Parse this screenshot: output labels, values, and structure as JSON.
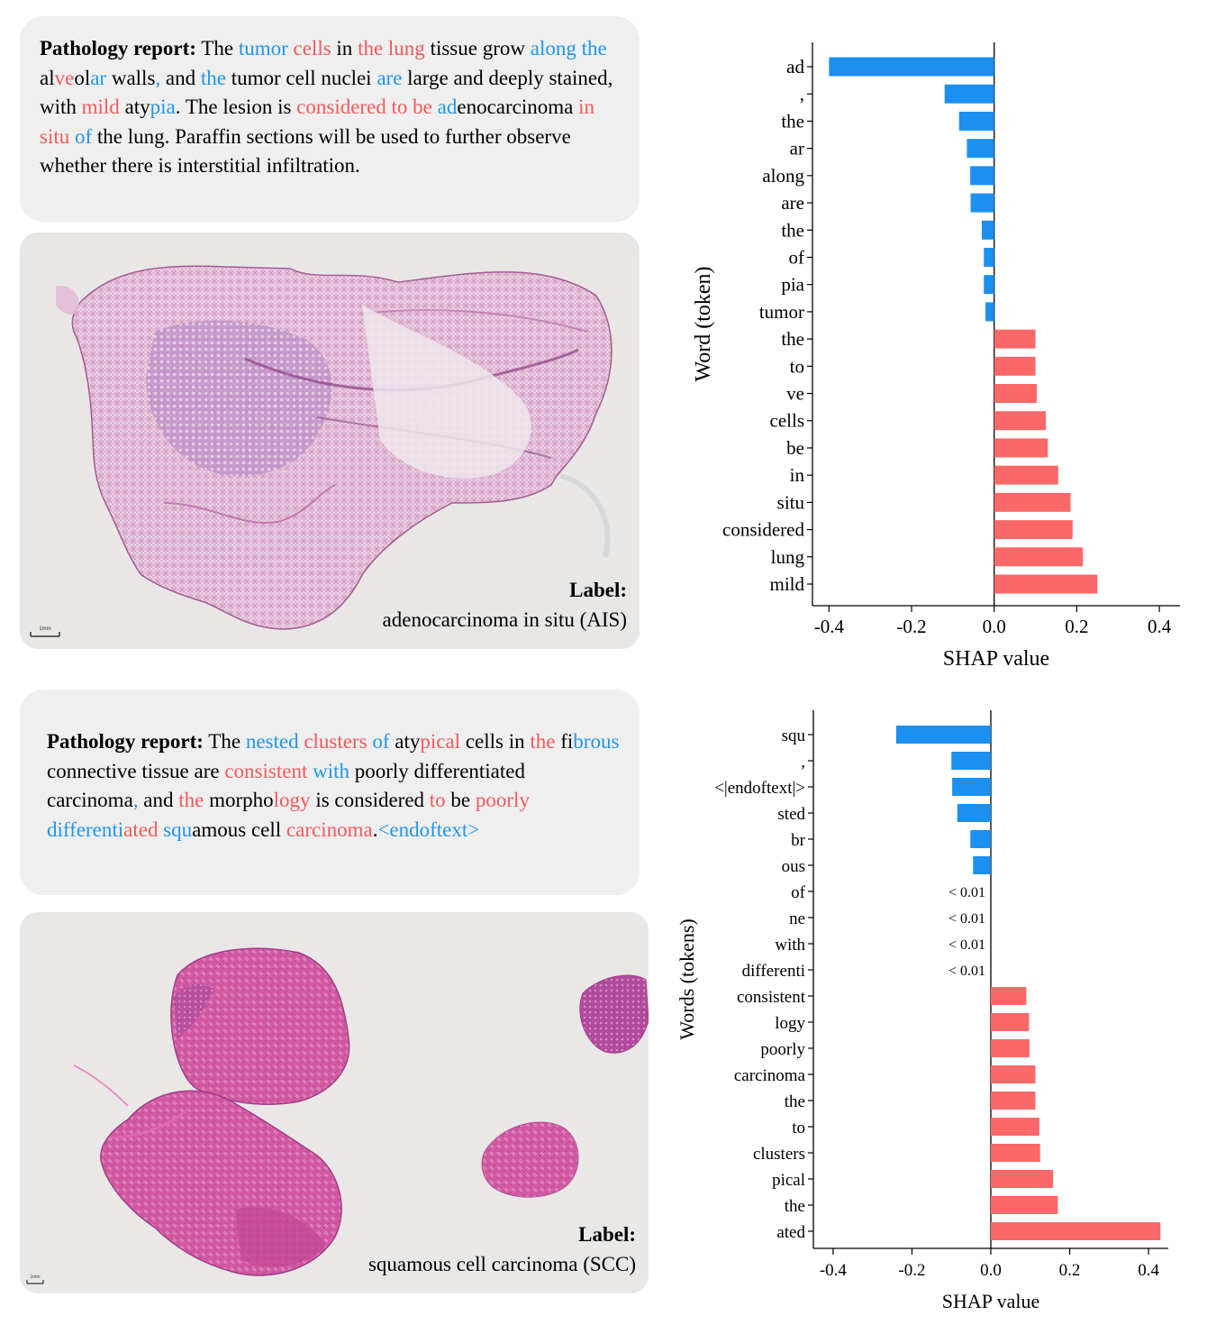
{
  "panels": [
    {
      "report": {
        "heading": "Pathology report:",
        "segments": [
          {
            "t": " The ",
            "c": ""
          },
          {
            "t": "tumor",
            "c": "blue"
          },
          {
            "t": " ",
            "c": ""
          },
          {
            "t": "cells",
            "c": "red"
          },
          {
            "t": " in ",
            "c": ""
          },
          {
            "t": "the lung",
            "c": "red"
          },
          {
            "t": " tissue grow ",
            "c": ""
          },
          {
            "t": "along the",
            "c": "blue"
          },
          {
            "t": " al",
            "c": ""
          },
          {
            "t": "ve",
            "c": "red"
          },
          {
            "t": "ol",
            "c": ""
          },
          {
            "t": "ar",
            "c": "blue"
          },
          {
            "t": " walls",
            "c": ""
          },
          {
            "t": ",",
            "c": "blue"
          },
          {
            "t": " and ",
            "c": ""
          },
          {
            "t": "the",
            "c": "blue"
          },
          {
            "t": " tumor cell nuclei ",
            "c": ""
          },
          {
            "t": "are",
            "c": "blue"
          },
          {
            "t": " large and deeply stained, with ",
            "c": ""
          },
          {
            "t": "mild",
            "c": "red"
          },
          {
            "t": " aty",
            "c": ""
          },
          {
            "t": "pia",
            "c": "blue"
          },
          {
            "t": ". The lesion is ",
            "c": ""
          },
          {
            "t": "considered to be",
            "c": "red"
          },
          {
            "t": " ",
            "c": ""
          },
          {
            "t": "ad",
            "c": "blue"
          },
          {
            "t": "enocarcinoma ",
            "c": ""
          },
          {
            "t": "in situ",
            "c": "red"
          },
          {
            "t": " ",
            "c": ""
          },
          {
            "t": "of",
            "c": "blue"
          },
          {
            "t": " the lung. Paraffin sections will be used to further observe whether there is interstitial infiltration.",
            "c": ""
          }
        ]
      },
      "slide": {
        "label_title": "Label:",
        "label_value": "adenocarcinoma in situ (AIS)",
        "scale_text": "1mm"
      },
      "chart": {
        "type": "bar",
        "orientation": "horizontal",
        "ylabel": "Word (token)",
        "xlabel": "SHAP value",
        "xlim": [
          -0.44,
          0.45
        ],
        "xticks": [
          -0.4,
          -0.2,
          0.0,
          0.2,
          0.4
        ],
        "xtick_labels": [
          "-0.4",
          "-0.2",
          "0.0",
          "0.2",
          "0.4"
        ],
        "categories": [
          "ad",
          ",",
          "the",
          "ar",
          "along",
          "are",
          "the",
          "of",
          "pia",
          "tumor",
          "the",
          "to",
          "ve",
          "cells",
          "be",
          "in",
          "situ",
          "considered",
          "lung",
          "mild"
        ],
        "values": [
          -0.4,
          -0.12,
          -0.085,
          -0.066,
          -0.058,
          -0.057,
          -0.03,
          -0.025,
          -0.025,
          -0.021,
          0.1,
          0.1,
          0.103,
          0.125,
          0.13,
          0.155,
          0.185,
          0.19,
          0.215,
          0.25
        ],
        "annotations": [
          "",
          "",
          "",
          "",
          "",
          "",
          "",
          "",
          "",
          "",
          "",
          "",
          "",
          "",
          "",
          "",
          "",
          "",
          "",
          ""
        ],
        "colors": {
          "negative": "#1b90f0",
          "positive": "#fb6868"
        }
      }
    },
    {
      "report": {
        "heading": "Pathology report:",
        "segments": [
          {
            "t": " The ",
            "c": ""
          },
          {
            "t": "nested",
            "c": "blue"
          },
          {
            "t": " ",
            "c": ""
          },
          {
            "t": "clusters",
            "c": "red"
          },
          {
            "t": " ",
            "c": ""
          },
          {
            "t": "of",
            "c": "blue"
          },
          {
            "t": " aty",
            "c": ""
          },
          {
            "t": "pical",
            "c": "red"
          },
          {
            "t": " cells in ",
            "c": ""
          },
          {
            "t": "the",
            "c": "red"
          },
          {
            "t": " fi",
            "c": ""
          },
          {
            "t": "brous",
            "c": "blue"
          },
          {
            "t": " connective tissue are ",
            "c": ""
          },
          {
            "t": "consistent",
            "c": "red"
          },
          {
            "t": " ",
            "c": ""
          },
          {
            "t": "with",
            "c": "blue"
          },
          {
            "t": " poorly differentiated carcinoma",
            "c": ""
          },
          {
            "t": ",",
            "c": "blue"
          },
          {
            "t": " and ",
            "c": ""
          },
          {
            "t": "the",
            "c": "red"
          },
          {
            "t": " morpho",
            "c": ""
          },
          {
            "t": "logy",
            "c": "red"
          },
          {
            "t": " is considered ",
            "c": ""
          },
          {
            "t": "to",
            "c": "red"
          },
          {
            "t": " be ",
            "c": ""
          },
          {
            "t": "poorly",
            "c": "red"
          },
          {
            "t": " ",
            "c": ""
          },
          {
            "t": "differenti",
            "c": "blue"
          },
          {
            "t": "ated",
            "c": "red"
          },
          {
            "t": " ",
            "c": ""
          },
          {
            "t": "squ",
            "c": "blue"
          },
          {
            "t": "amous cell ",
            "c": ""
          },
          {
            "t": "carcinoma",
            "c": "red"
          },
          {
            "t": ".",
            "c": ""
          },
          {
            "t": "<endoftext>",
            "c": "blue"
          }
        ]
      },
      "slide": {
        "label_title": "Label:",
        "label_value": "squamous cell carcinoma (SCC)",
        "scale_text": "1mm"
      },
      "chart": {
        "type": "bar",
        "orientation": "horizontal",
        "ylabel": "Words (tokens)",
        "xlabel": "SHAP value",
        "xlim": [
          -0.45,
          0.45
        ],
        "xticks": [
          -0.4,
          -0.2,
          0.0,
          0.2,
          0.4
        ],
        "xtick_labels": [
          "-0.4",
          "-0.2",
          "0.0",
          "0.2",
          "0.4"
        ],
        "categories": [
          "squ",
          ",",
          "<|endoftext|>",
          "sted",
          "br",
          "ous",
          "of",
          "ne",
          "with",
          "differenti",
          "consistent",
          "logy",
          "poorly",
          "carcinoma",
          "the",
          "to",
          "clusters",
          "pical",
          "the",
          "ated"
        ],
        "values": [
          -0.24,
          -0.1,
          -0.098,
          -0.085,
          -0.052,
          -0.045,
          0.0,
          0.0,
          0.0,
          0.0,
          0.09,
          0.097,
          0.098,
          0.113,
          0.113,
          0.123,
          0.125,
          0.158,
          0.17,
          0.43
        ],
        "annotations": [
          "",
          "",
          "",
          "",
          "",
          "",
          "< 0.01",
          "< 0.01",
          "< 0.01",
          "< 0.01",
          "",
          "",
          "",
          "",
          "",
          "",
          "",
          "",
          "",
          ""
        ],
        "colors": {
          "negative": "#1b90f0",
          "positive": "#fb6868"
        }
      }
    }
  ]
}
